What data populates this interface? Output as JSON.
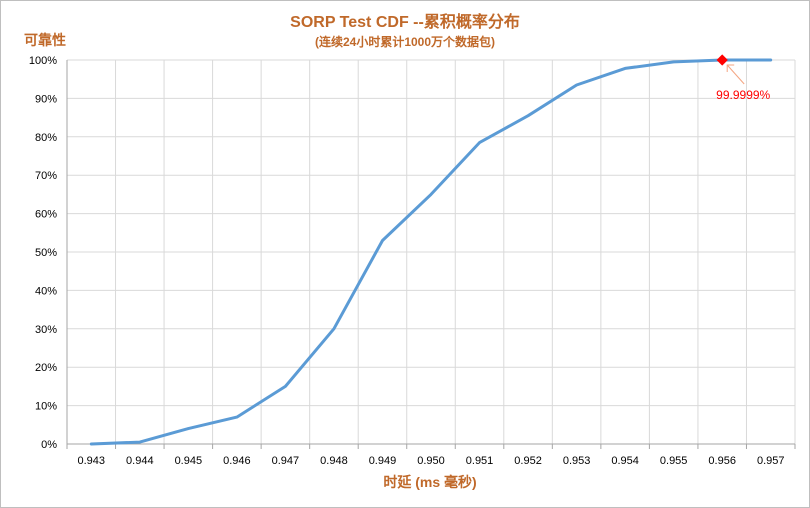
{
  "colors": {
    "title": "#c0692a",
    "line": "#5b9bd5",
    "grid": "#d9d9d9",
    "axis": "#a6a6a6",
    "marker": "#ff0000",
    "annotation": "#ff0000",
    "annotation_arrow": "#f4a582"
  },
  "chart_data": {
    "type": "line",
    "title": "SORP Test CDF --累积概率分布",
    "subtitle": "(连续24小时累计1000万个数据包)",
    "xlabel": "时延 (ms 毫秒)",
    "ylabel": "可靠性",
    "x_ticks": [
      "0.943",
      "0.944",
      "0.945",
      "0.946",
      "0.947",
      "0.948",
      "0.949",
      "0.950",
      "0.951",
      "0.952",
      "0.953",
      "0.954",
      "0.955",
      "0.956",
      "0.957"
    ],
    "y_ticks": [
      "0%",
      "10%",
      "20%",
      "30%",
      "40%",
      "50%",
      "60%",
      "70%",
      "80%",
      "90%",
      "100%"
    ],
    "xlim": [
      0.943,
      0.957
    ],
    "ylim": [
      0,
      100
    ],
    "grid": true,
    "series": [
      {
        "x": [
          0.943,
          0.944,
          0.945,
          0.946,
          0.947,
          0.948,
          0.949,
          0.95,
          0.951,
          0.952,
          0.953,
          0.954,
          0.955,
          0.956,
          0.957
        ],
        "y": [
          0,
          0.5,
          4,
          7,
          15,
          30,
          53,
          65,
          78.5,
          85.5,
          93.5,
          97.8,
          99.5,
          99.9999,
          100
        ]
      }
    ],
    "annotation": {
      "text": "99.9999%",
      "x": 0.956,
      "y": 99.9999
    }
  }
}
